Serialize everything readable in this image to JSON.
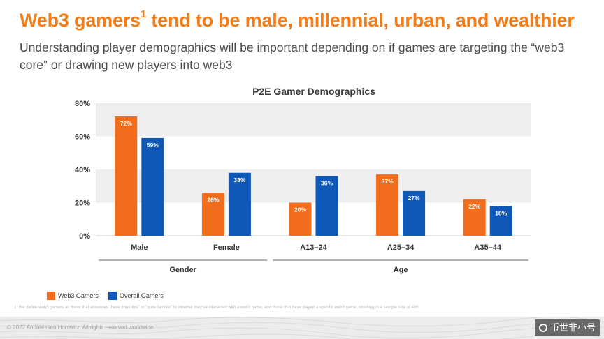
{
  "page": {
    "headline": "Web3 gamers",
    "headline_sup": "1",
    "headline_rest": " tend to be male, millennial, urban, and wealthier",
    "subhead": "Understanding player demographics will be important depending on if games are targeting the “web3 core” or drawing new players into web3",
    "footnote": "1. We define web3 gamers as those that answered “have done this” or “quite familiar” to whether they’ve interacted with a web3 game, and those that have played a specific web3 game, resulting in a sample size of 486.",
    "copyright": "© 2022 Andreessen Horowitz. All rights reserved worldwide.",
    "watermark_text": "币世非小号"
  },
  "colors": {
    "web3": "#f26c1d",
    "overall": "#0f58b8",
    "headline": "#f07d1a",
    "band": "#efefef"
  },
  "chart_data": {
    "type": "bar",
    "title": "P2E Gamer Demographics",
    "categories": [
      "Male",
      "Female",
      "A13–24",
      "A25–34",
      "A35–44"
    ],
    "groups": [
      {
        "label": "Gender",
        "categories": [
          "Male",
          "Female"
        ]
      },
      {
        "label": "Age",
        "categories": [
          "A13–24",
          "A25–34",
          "A35–44"
        ]
      }
    ],
    "series": [
      {
        "name": "Web3 Gamers",
        "values": [
          72,
          26,
          20,
          37,
          22
        ],
        "color": "#f26c1d"
      },
      {
        "name": "Overall Gamers",
        "values": [
          59,
          38,
          36,
          27,
          18
        ],
        "color": "#0f58b8"
      }
    ],
    "ylim": [
      0,
      80
    ],
    "yticks": [
      0,
      20,
      40,
      60,
      80
    ],
    "ytick_suffix": "%",
    "data_label_suffix": "%",
    "grid": "alternating bands",
    "legend_position": "bottom-left"
  }
}
